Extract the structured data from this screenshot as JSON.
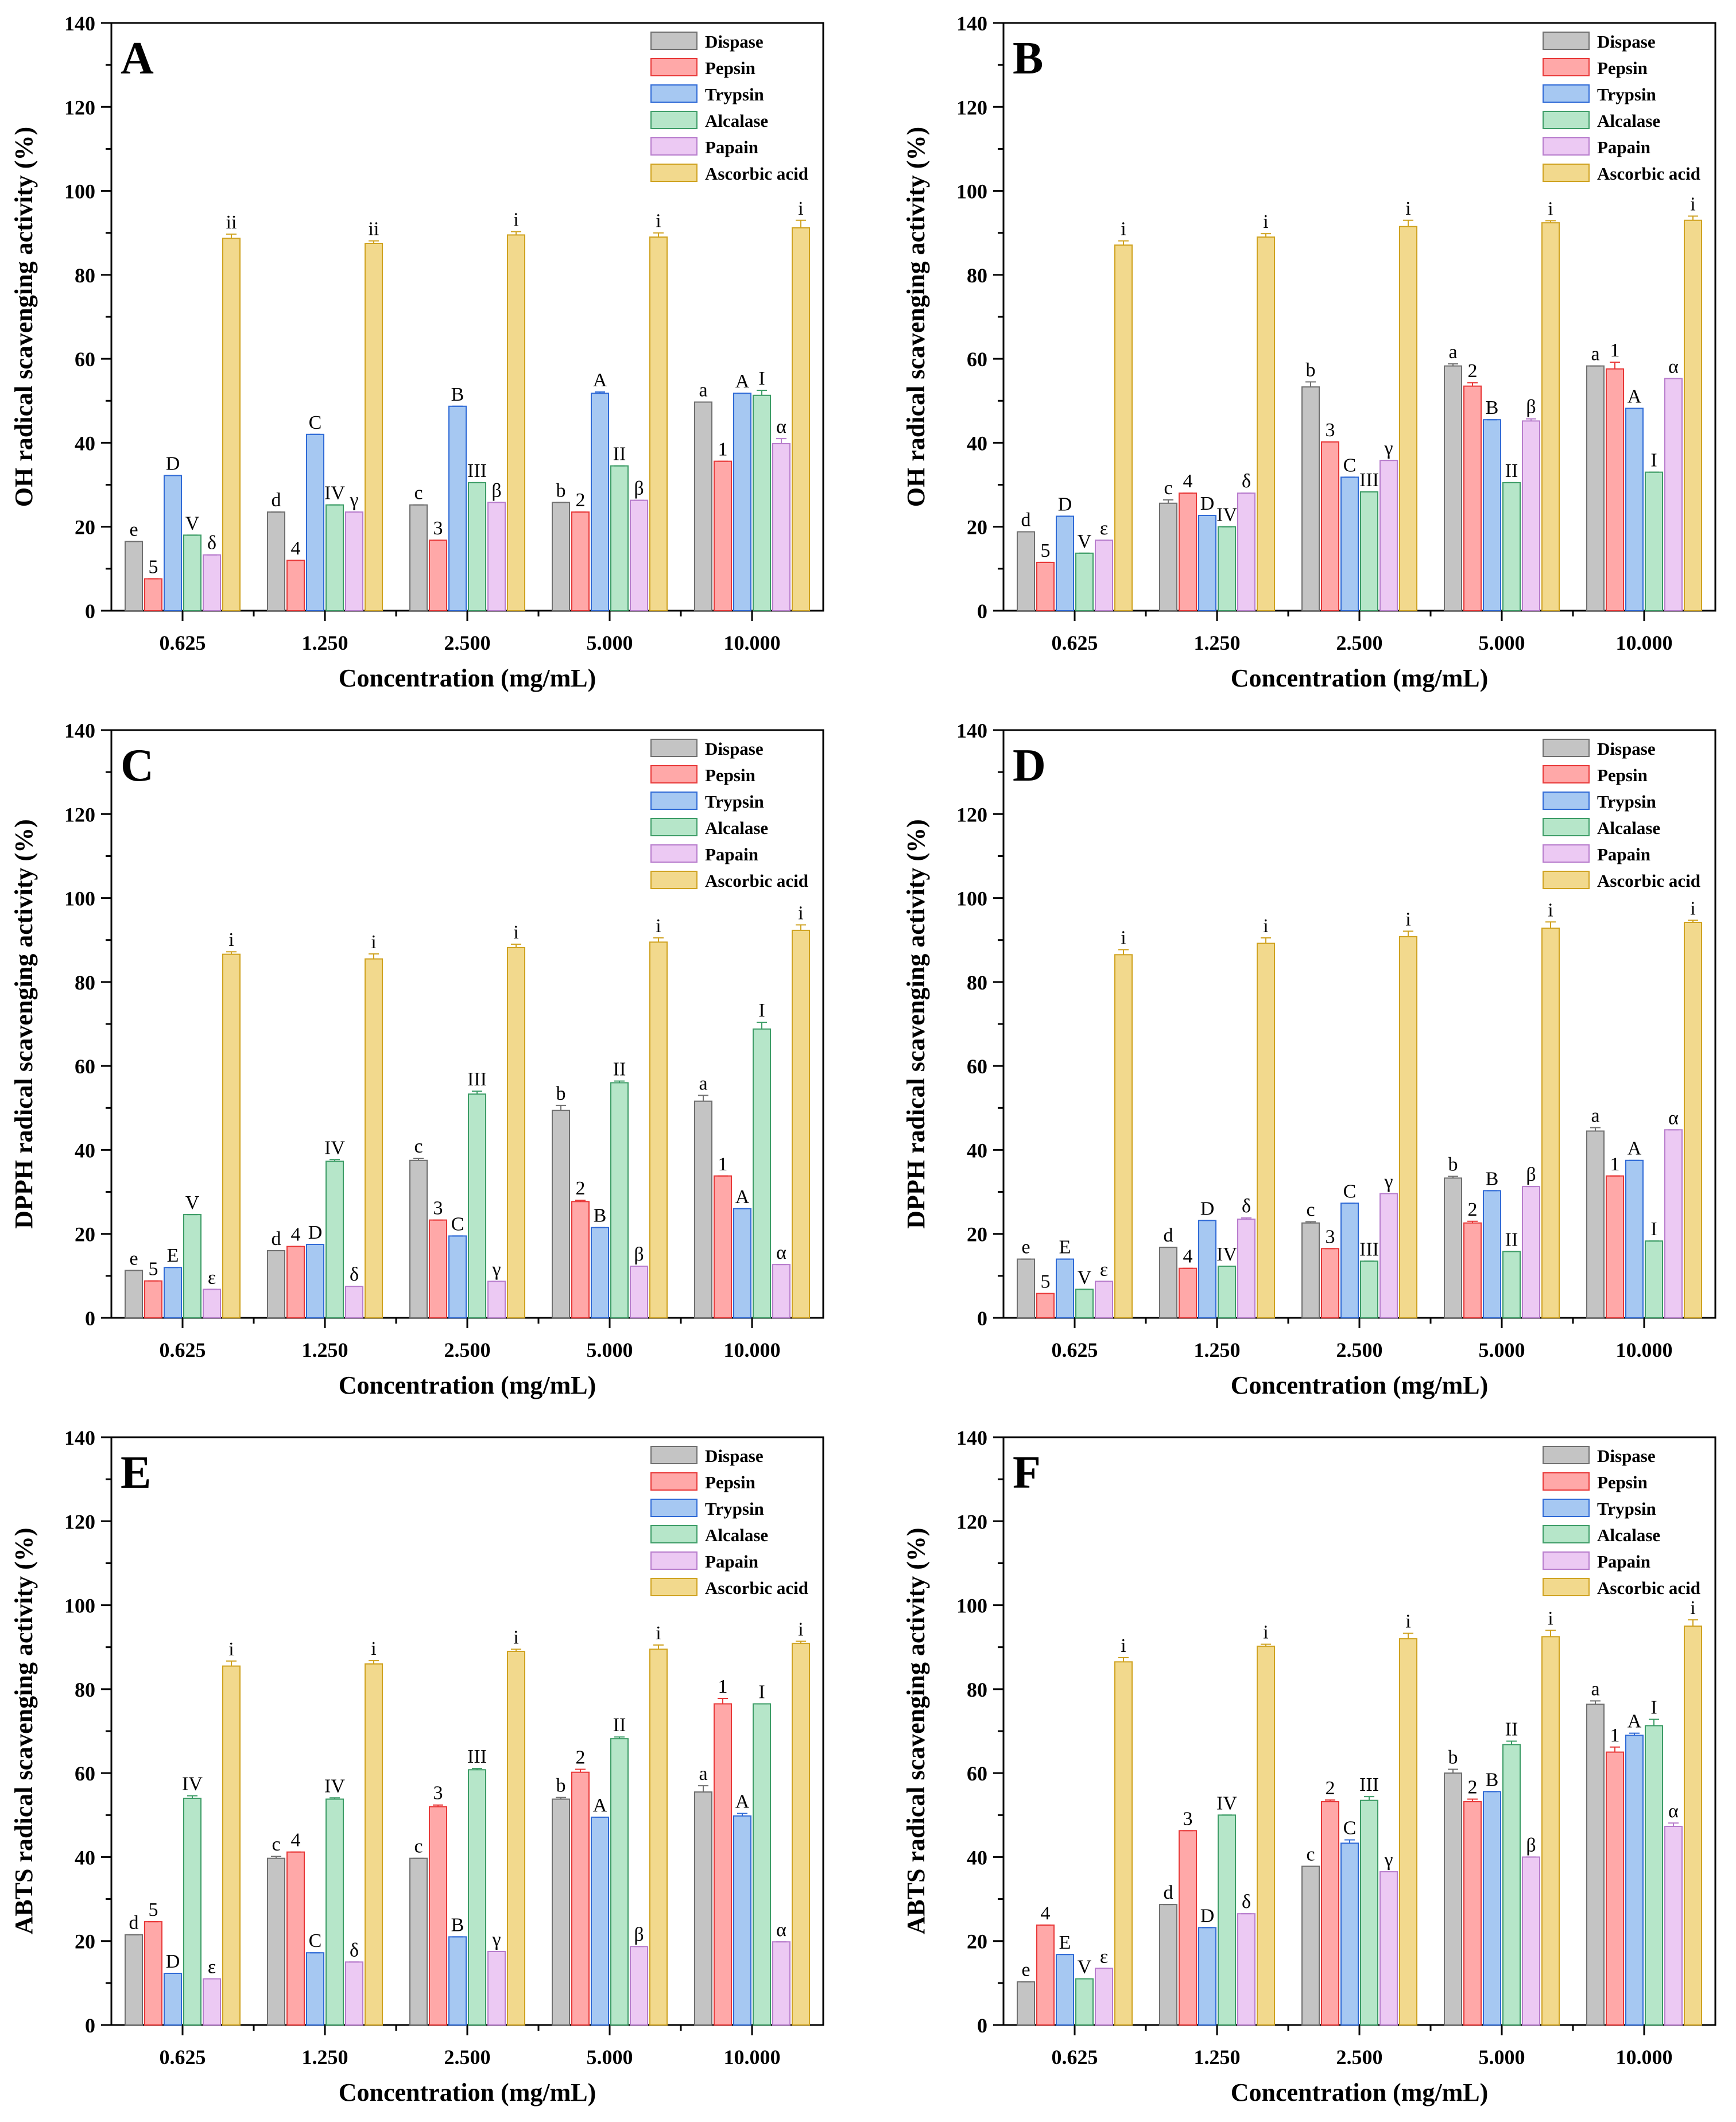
{
  "colors": {
    "Dispase": {
      "fill": "#c4c4c4",
      "stroke": "#6f6f6f"
    },
    "Pepsin": {
      "fill": "#ffa8a8",
      "stroke": "#e83838"
    },
    "Trypsin": {
      "fill": "#a6c8f2",
      "stroke": "#2f6ad6"
    },
    "Alcalase": {
      "fill": "#b6e6c9",
      "stroke": "#3c9c66"
    },
    "Papain": {
      "fill": "#ecc9f3",
      "stroke": "#b77ccc"
    },
    "Ascorbic acid": {
      "fill": "#f2d98d",
      "stroke": "#cfa220"
    }
  },
  "chart_data": [
    {
      "type": "bar",
      "panel": "A",
      "xlabel": "Concentration (mg/mL)",
      "ylabel": "OH radical scavenging activity (%)",
      "ylim": [
        0,
        140
      ],
      "yticks": [
        0,
        20,
        40,
        60,
        80,
        100,
        120,
        140
      ],
      "legend_position": "top-right",
      "categories": [
        "0.625",
        "1.250",
        "2.500",
        "5.000",
        "10.000"
      ],
      "series": [
        {
          "name": "Dispase",
          "values": [
            16.5,
            23.5,
            25.2,
            25.8,
            49.7
          ],
          "errors": [
            0,
            0,
            0,
            0,
            0
          ],
          "labels": [
            "e",
            "d",
            "c",
            "b",
            "a"
          ]
        },
        {
          "name": "Pepsin",
          "values": [
            7.6,
            12.0,
            16.8,
            23.5,
            35.6
          ],
          "errors": [
            0,
            0,
            0,
            0,
            0
          ],
          "labels": [
            "5",
            "4",
            "3",
            "2",
            "1"
          ]
        },
        {
          "name": "Trypsin",
          "values": [
            32.2,
            42.0,
            48.7,
            51.8,
            51.8
          ],
          "errors": [
            0,
            0,
            0,
            0.3,
            0
          ],
          "labels": [
            "D",
            "C",
            "B",
            "A",
            "A"
          ]
        },
        {
          "name": "Alcalase",
          "values": [
            18.0,
            25.2,
            30.5,
            34.5,
            51.3
          ],
          "errors": [
            0,
            0,
            0,
            0,
            1.2
          ],
          "labels": [
            "V",
            "IV",
            "III",
            "II",
            "I"
          ]
        },
        {
          "name": "Papain",
          "values": [
            13.3,
            23.5,
            25.8,
            26.3,
            39.8
          ],
          "errors": [
            0,
            0,
            0,
            0,
            1.2
          ],
          "labels": [
            "δ",
            "γ",
            "β",
            "β",
            "α"
          ]
        },
        {
          "name": "Ascorbic acid",
          "values": [
            88.7,
            87.5,
            89.5,
            89.0,
            91.2
          ],
          "errors": [
            1.0,
            0.6,
            0.8,
            1.0,
            1.8
          ],
          "labels": [
            "ii",
            "ii",
            "i",
            "i",
            "i"
          ]
        }
      ]
    },
    {
      "type": "bar",
      "panel": "B",
      "xlabel": "Concentration (mg/mL)",
      "ylabel": "OH radical scavenging activity (%)",
      "ylim": [
        0,
        140
      ],
      "yticks": [
        0,
        20,
        40,
        60,
        80,
        100,
        120,
        140
      ],
      "legend_position": "top-right",
      "categories": [
        "0.625",
        "1.250",
        "2.500",
        "5.000",
        "10.000"
      ],
      "series": [
        {
          "name": "Dispase",
          "values": [
            18.8,
            25.6,
            53.3,
            58.3,
            58.3
          ],
          "errors": [
            0,
            0.8,
            1.2,
            0.5,
            0
          ],
          "labels": [
            "d",
            "c",
            "b",
            "a",
            "a"
          ]
        },
        {
          "name": "Pepsin",
          "values": [
            11.5,
            28.0,
            40.2,
            53.5,
            57.6
          ],
          "errors": [
            0,
            0,
            0,
            0.8,
            1.6
          ],
          "labels": [
            "5",
            "4",
            "3",
            "2",
            "1"
          ]
        },
        {
          "name": "Trypsin",
          "values": [
            22.5,
            22.7,
            31.8,
            45.5,
            48.2
          ],
          "errors": [
            0,
            0,
            0,
            0,
            0
          ],
          "labels": [
            "D",
            "D",
            "C",
            "B",
            "A"
          ]
        },
        {
          "name": "Alcalase",
          "values": [
            13.7,
            20.0,
            28.3,
            30.5,
            33.0
          ],
          "errors": [
            0,
            0,
            0,
            0,
            0
          ],
          "labels": [
            "V",
            "IV",
            "III",
            "II",
            "I"
          ]
        },
        {
          "name": "Papain",
          "values": [
            16.8,
            28.0,
            35.8,
            45.2,
            55.3
          ],
          "errors": [
            0,
            0,
            0,
            0.5,
            0
          ],
          "labels": [
            "ε",
            "δ",
            "γ",
            "β",
            "α"
          ]
        },
        {
          "name": "Ascorbic acid",
          "values": [
            87.1,
            89.0,
            91.5,
            92.4,
            93.0
          ],
          "errors": [
            1.0,
            0.8,
            1.5,
            0.5,
            1.0
          ],
          "labels": [
            "i",
            "i",
            "i",
            "i",
            "i"
          ]
        }
      ]
    },
    {
      "type": "bar",
      "panel": "C",
      "xlabel": "Concentration (mg/mL)",
      "ylabel": "DPPH radical scavenging activity (%)",
      "ylim": [
        0,
        140
      ],
      "yticks": [
        0,
        20,
        40,
        60,
        80,
        100,
        120,
        140
      ],
      "legend_position": "top-right",
      "categories": [
        "0.625",
        "1.250",
        "2.500",
        "5.000",
        "10.000"
      ],
      "series": [
        {
          "name": "Dispase",
          "values": [
            11.3,
            16.0,
            37.5,
            49.4,
            51.6
          ],
          "errors": [
            0,
            0,
            0.5,
            1.2,
            1.4
          ],
          "labels": [
            "e",
            "d",
            "c",
            "b",
            "a"
          ]
        },
        {
          "name": "Pepsin",
          "values": [
            8.8,
            17.0,
            23.3,
            27.7,
            33.8
          ],
          "errors": [
            0,
            0,
            0,
            0.3,
            0
          ],
          "labels": [
            "5",
            "4",
            "3",
            "2",
            "1"
          ]
        },
        {
          "name": "Trypsin",
          "values": [
            12.0,
            17.5,
            19.5,
            21.5,
            26.0
          ],
          "errors": [
            0,
            0,
            0,
            0,
            0
          ],
          "labels": [
            "E",
            "D",
            "C",
            "B",
            "A"
          ]
        },
        {
          "name": "Alcalase",
          "values": [
            24.6,
            37.3,
            53.3,
            56.0,
            68.8
          ],
          "errors": [
            0,
            0.4,
            0.7,
            0.4,
            1.6
          ],
          "labels": [
            "V",
            "IV",
            "III",
            "II",
            "I"
          ]
        },
        {
          "name": "Papain",
          "values": [
            6.8,
            7.5,
            8.7,
            12.3,
            12.7
          ],
          "errors": [
            0,
            0,
            0,
            0,
            0
          ],
          "labels": [
            "ε",
            "δ",
            "γ",
            "β",
            "α"
          ]
        },
        {
          "name": "Ascorbic acid",
          "values": [
            86.6,
            85.5,
            88.2,
            89.5,
            92.3
          ],
          "errors": [
            0.6,
            1.2,
            0.8,
            1.0,
            1.3
          ],
          "labels": [
            "i",
            "i",
            "i",
            "i",
            "i"
          ]
        }
      ]
    },
    {
      "type": "bar",
      "panel": "D",
      "xlabel": "Concentration (mg/mL)",
      "ylabel": "DPPH radical scavenging activity (%)",
      "ylim": [
        0,
        140
      ],
      "yticks": [
        0,
        20,
        40,
        60,
        80,
        100,
        120,
        140
      ],
      "legend_position": "top-right",
      "categories": [
        "0.625",
        "1.250",
        "2.500",
        "5.000",
        "10.000"
      ],
      "series": [
        {
          "name": "Dispase",
          "values": [
            14.0,
            16.8,
            22.6,
            33.3,
            44.5
          ],
          "errors": [
            0,
            0,
            0.3,
            0.4,
            0.8
          ],
          "labels": [
            "e",
            "d",
            "c",
            "b",
            "a"
          ]
        },
        {
          "name": "Pepsin",
          "values": [
            5.8,
            11.8,
            16.5,
            22.6,
            33.8
          ],
          "errors": [
            0,
            0,
            0,
            0.4,
            0
          ],
          "labels": [
            "5",
            "4",
            "3",
            "2",
            "1"
          ]
        },
        {
          "name": "Trypsin",
          "values": [
            14.0,
            23.2,
            27.3,
            30.3,
            37.5
          ],
          "errors": [
            0,
            0,
            0,
            0,
            0
          ],
          "labels": [
            "E",
            "D",
            "C",
            "B",
            "A"
          ]
        },
        {
          "name": "Alcalase",
          "values": [
            6.8,
            12.3,
            13.5,
            15.8,
            18.3
          ],
          "errors": [
            0,
            0,
            0,
            0,
            0
          ],
          "labels": [
            "V",
            "IV",
            "III",
            "II",
            "I"
          ]
        },
        {
          "name": "Papain",
          "values": [
            8.7,
            23.5,
            29.6,
            31.3,
            44.8
          ],
          "errors": [
            0,
            0.3,
            0,
            0,
            0
          ],
          "labels": [
            "ε",
            "δ",
            "γ",
            "β",
            "α"
          ]
        },
        {
          "name": "Ascorbic acid",
          "values": [
            86.5,
            89.2,
            90.8,
            92.8,
            94.2
          ],
          "errors": [
            1.2,
            1.3,
            1.3,
            1.5,
            0.5
          ],
          "labels": [
            "i",
            "i",
            "i",
            "i",
            "i"
          ]
        }
      ]
    },
    {
      "type": "bar",
      "panel": "E",
      "xlabel": "Concentration (mg/mL)",
      "ylabel": "ABTS radical scavenging activity (%)",
      "ylim": [
        0,
        140
      ],
      "yticks": [
        0,
        20,
        40,
        60,
        80,
        100,
        120,
        140
      ],
      "legend_position": "top-right",
      "categories": [
        "0.625",
        "1.250",
        "2.500",
        "5.000",
        "10.000"
      ],
      "series": [
        {
          "name": "Dispase",
          "values": [
            21.5,
            39.7,
            39.7,
            53.8,
            55.5
          ],
          "errors": [
            0,
            0.5,
            0,
            0.4,
            1.5
          ],
          "labels": [
            "d",
            "c",
            "c",
            "b",
            "a"
          ]
        },
        {
          "name": "Pepsin",
          "values": [
            24.6,
            41.2,
            52.0,
            60.2,
            76.5
          ],
          "errors": [
            0,
            0,
            0.4,
            0.7,
            1.3
          ],
          "labels": [
            "5",
            "4",
            "3",
            "2",
            "1"
          ]
        },
        {
          "name": "Trypsin",
          "values": [
            12.3,
            17.2,
            21.0,
            49.5,
            49.8
          ],
          "errors": [
            0,
            0,
            0,
            0,
            0.6
          ],
          "labels": [
            "D",
            "C",
            "B",
            "A",
            "A"
          ]
        },
        {
          "name": "Alcalase",
          "values": [
            54.0,
            53.8,
            60.8,
            68.2,
            76.5
          ],
          "errors": [
            0.6,
            0.3,
            0.3,
            0.4,
            0
          ],
          "labels": [
            "IV",
            "IV",
            "III",
            "II",
            "I"
          ]
        },
        {
          "name": "Papain",
          "values": [
            11.0,
            15.0,
            17.5,
            18.7,
            19.8
          ],
          "errors": [
            0,
            0,
            0,
            0,
            0
          ],
          "labels": [
            "ε",
            "δ",
            "γ",
            "β",
            "α"
          ]
        },
        {
          "name": "Ascorbic acid",
          "values": [
            85.5,
            86.0,
            89.0,
            89.5,
            90.9
          ],
          "errors": [
            1.2,
            0.8,
            0.5,
            1.0,
            0.5
          ],
          "labels": [
            "i",
            "i",
            "i",
            "i",
            "i"
          ]
        }
      ]
    },
    {
      "type": "bar",
      "panel": "F",
      "xlabel": "Concentration (mg/mL)",
      "ylabel": "ABTS radical scavenging activity (%)",
      "ylim": [
        0,
        140
      ],
      "yticks": [
        0,
        20,
        40,
        60,
        80,
        100,
        120,
        140
      ],
      "legend_position": "top-right",
      "categories": [
        "0.625",
        "1.250",
        "2.500",
        "5.000",
        "10.000"
      ],
      "series": [
        {
          "name": "Dispase",
          "values": [
            10.3,
            28.7,
            37.8,
            60.0,
            76.4
          ],
          "errors": [
            0,
            0,
            0,
            0.9,
            0.8
          ],
          "labels": [
            "e",
            "d",
            "c",
            "b",
            "a"
          ]
        },
        {
          "name": "Pepsin",
          "values": [
            23.8,
            46.3,
            53.2,
            53.2,
            65.0
          ],
          "errors": [
            0,
            0,
            0.4,
            0.6,
            1.2
          ],
          "labels": [
            "4",
            "3",
            "2",
            "2",
            "1"
          ]
        },
        {
          "name": "Trypsin",
          "values": [
            16.8,
            23.2,
            43.3,
            55.6,
            69.0
          ],
          "errors": [
            0,
            0,
            0.8,
            0,
            0.5
          ],
          "labels": [
            "E",
            "D",
            "C",
            "B",
            "A"
          ]
        },
        {
          "name": "Alcalase",
          "values": [
            11.0,
            50.0,
            53.5,
            66.8,
            71.3
          ],
          "errors": [
            0,
            0,
            0.9,
            0.8,
            1.5
          ],
          "labels": [
            "V",
            "IV",
            "III",
            "II",
            "I"
          ]
        },
        {
          "name": "Papain",
          "values": [
            13.5,
            26.5,
            36.5,
            40.0,
            47.3
          ],
          "errors": [
            0,
            0,
            0,
            0,
            0.8
          ],
          "labels": [
            "ε",
            "δ",
            "γ",
            "β",
            "α"
          ]
        },
        {
          "name": "Ascorbic acid",
          "values": [
            86.5,
            90.2,
            92.0,
            92.5,
            95.0
          ],
          "errors": [
            1.0,
            0.5,
            1.3,
            1.5,
            1.5
          ],
          "labels": [
            "i",
            "i",
            "i",
            "i",
            "i"
          ]
        }
      ]
    }
  ]
}
